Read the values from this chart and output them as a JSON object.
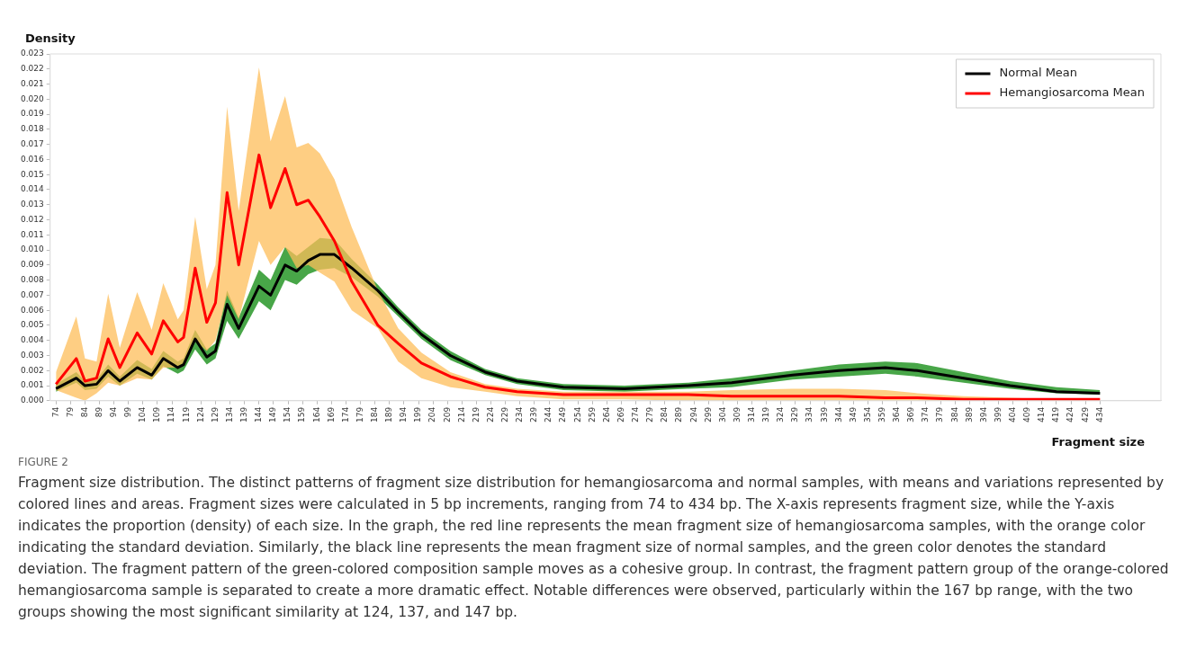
{
  "chart_data": {
    "type": "line",
    "xlabel": "Fragment size",
    "ylabel": "Density",
    "x": [
      74,
      81,
      84,
      88,
      92,
      96,
      102,
      107,
      111,
      116,
      118,
      122,
      126,
      129,
      133,
      137,
      144,
      148,
      153,
      157,
      161,
      165,
      170,
      176,
      185,
      192,
      200,
      210,
      222,
      233,
      249,
      270,
      292,
      307,
      328,
      344,
      360,
      371,
      387,
      403,
      419,
      434
    ],
    "series": [
      {
        "name": "Normal Mean",
        "color": "#000000",
        "values": [
          0.0008,
          0.0015,
          0.001,
          0.0011,
          0.002,
          0.0013,
          0.0022,
          0.0017,
          0.0028,
          0.0022,
          0.0024,
          0.0041,
          0.0029,
          0.0033,
          0.0064,
          0.0048,
          0.0076,
          0.007,
          0.009,
          0.0086,
          0.0093,
          0.0097,
          0.0097,
          0.0088,
          0.0073,
          0.0059,
          0.0044,
          0.003,
          0.0019,
          0.0013,
          0.0009,
          0.0008,
          0.001,
          0.0012,
          0.0017,
          0.002,
          0.0022,
          0.002,
          0.0015,
          0.001,
          0.0006,
          0.0005
        ],
        "upper": [
          0.0011,
          0.0019,
          0.0013,
          0.0014,
          0.0024,
          0.0016,
          0.0027,
          0.0021,
          0.0033,
          0.0026,
          0.0028,
          0.0047,
          0.0034,
          0.0038,
          0.0073,
          0.0055,
          0.0087,
          0.008,
          0.0102,
          0.0096,
          0.0102,
          0.0108,
          0.0107,
          0.0094,
          0.0077,
          0.0062,
          0.0047,
          0.0033,
          0.0021,
          0.0015,
          0.0011,
          0.001,
          0.0012,
          0.0015,
          0.002,
          0.0024,
          0.0026,
          0.0025,
          0.0019,
          0.0013,
          0.0009,
          0.0007
        ],
        "lower": [
          0.0006,
          0.0012,
          0.0007,
          0.0008,
          0.0016,
          0.001,
          0.0018,
          0.0014,
          0.0023,
          0.0018,
          0.002,
          0.0034,
          0.0024,
          0.0028,
          0.0053,
          0.0041,
          0.0066,
          0.006,
          0.008,
          0.0077,
          0.0084,
          0.0087,
          0.0088,
          0.0082,
          0.0069,
          0.0056,
          0.0041,
          0.0027,
          0.0017,
          0.0011,
          0.0007,
          0.0006,
          0.0008,
          0.0009,
          0.0014,
          0.0016,
          0.0018,
          0.0016,
          0.0012,
          0.0008,
          0.0005,
          0.0004
        ]
      },
      {
        "name": "Hemangiosarcoma Mean",
        "color": "#ff0000",
        "values": [
          0.0011,
          0.0028,
          0.0013,
          0.0015,
          0.0041,
          0.0022,
          0.0045,
          0.0031,
          0.0053,
          0.0039,
          0.0042,
          0.0088,
          0.0052,
          0.0065,
          0.0138,
          0.009,
          0.0163,
          0.0128,
          0.0154,
          0.013,
          0.0133,
          0.0122,
          0.0106,
          0.0079,
          0.005,
          0.0038,
          0.0025,
          0.0016,
          0.0009,
          0.0006,
          0.0004,
          0.0004,
          0.0004,
          0.0003,
          0.0003,
          0.0003,
          0.0002,
          0.0002,
          0.0001,
          0.0001,
          0.0001,
          0.0001
        ],
        "upper": [
          0.0019,
          0.0056,
          0.0028,
          0.0026,
          0.0071,
          0.0035,
          0.0072,
          0.0047,
          0.0078,
          0.0054,
          0.006,
          0.0122,
          0.0074,
          0.009,
          0.0195,
          0.0126,
          0.0221,
          0.0172,
          0.0202,
          0.0168,
          0.0171,
          0.0164,
          0.0147,
          0.0115,
          0.0073,
          0.0048,
          0.0032,
          0.0019,
          0.0011,
          0.0008,
          0.0006,
          0.0006,
          0.0006,
          0.0007,
          0.0008,
          0.0008,
          0.0007,
          0.0005,
          0.0003,
          0.0002,
          0.0001,
          0.0001
        ],
        "lower": [
          0.0007,
          0.0002,
          0.0,
          0.0005,
          0.0012,
          0.001,
          0.0015,
          0.0014,
          0.0022,
          0.0022,
          0.0024,
          0.004,
          0.0033,
          0.004,
          0.007,
          0.0054,
          0.0106,
          0.009,
          0.0102,
          0.0088,
          0.009,
          0.0085,
          0.0079,
          0.006,
          0.0048,
          0.0026,
          0.0015,
          0.0009,
          0.0006,
          0.0003,
          0.0001,
          0.0001,
          0.0,
          0.0,
          0.0,
          0.0,
          0.0,
          0.0,
          0.0,
          0.0,
          0.0,
          0.0
        ]
      }
    ],
    "xlim": [
      72,
      455
    ],
    "xticks": [
      74,
      79,
      84,
      89,
      94,
      99,
      104,
      109,
      114,
      119,
      124,
      129,
      134,
      139,
      144,
      149,
      154,
      159,
      164,
      169,
      174,
      179,
      184,
      189,
      194,
      199,
      204,
      209,
      214,
      219,
      224,
      229,
      234,
      239,
      244,
      249,
      254,
      259,
      264,
      269,
      274,
      279,
      284,
      289,
      294,
      299,
      304,
      309,
      314,
      319,
      324,
      329,
      334,
      339,
      344,
      349,
      354,
      359,
      364,
      369,
      374,
      379,
      384,
      389,
      394,
      399,
      404,
      409,
      414,
      419,
      424,
      429,
      434
    ],
    "ylim": [
      0,
      0.023
    ],
    "yticks": [
      {
        "value": 0,
        "label": "0.000"
      },
      0.001,
      0.002,
      0.003,
      0.004,
      0.005,
      0.006,
      0.007,
      0.008,
      0.009,
      {
        "value": 0.01,
        "label": "0.010"
      },
      0.011,
      0.012,
      0.013,
      0.014,
      0.015,
      0.016,
      0.017,
      0.018,
      0.019,
      {
        "value": 0.02,
        "label": "0.020"
      },
      0.021,
      0.022,
      0.023
    ],
    "legend": "top right",
    "grid": false,
    "marker": "none",
    "line_style": "solid",
    "annotations": [
      "FIGURE 2",
      "Fragment size distribution. The distinct patterns of fragment size distribution for hemangiosarcoma and normal samples, with means and variations represented by colored lines and areas. Fragment sizes were calculated in 5 bp increments, ranging from 74 to 434 bp. The X-axis represents fragment size, while the Y-axis indicates the proportion (density) of each size. In the graph, the red line represents the mean fragment size of hemangiosarcoma samples, with the orange color indicating the standard deviation. Similarly, the black line represents the mean fragment size of normal samples, and the green color denotes the standard deviation. The fragment pattern of the green-colored composition sample moves as a cohesive group. In contrast, the fragment pattern group of the orange-colored hemangiosarcoma sample is separated to create a more dramatic effect. Notable differences were observed, particularly within the 167 bp range, with the two groups showing the most significant similarity at 124, 137, and 147 bp."
    ]
  }
}
